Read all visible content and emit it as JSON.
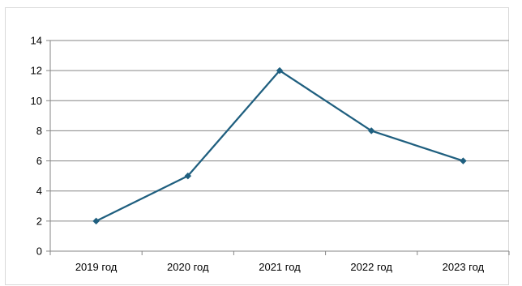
{
  "chart_data": {
    "type": "line",
    "title": "",
    "xlabel": "",
    "ylabel": "",
    "categories": [
      "2019 год",
      "2020 год",
      "2021 год",
      "2022 год",
      "2023 год"
    ],
    "series": [
      {
        "values": [
          2,
          5,
          12,
          8,
          6
        ],
        "color": "#1f5f7f",
        "marker": "diamond"
      }
    ],
    "ylim": [
      0,
      14
    ],
    "yticks": [
      0,
      2,
      4,
      6,
      8,
      10,
      12,
      14
    ],
    "grid": true,
    "legend": "none"
  }
}
